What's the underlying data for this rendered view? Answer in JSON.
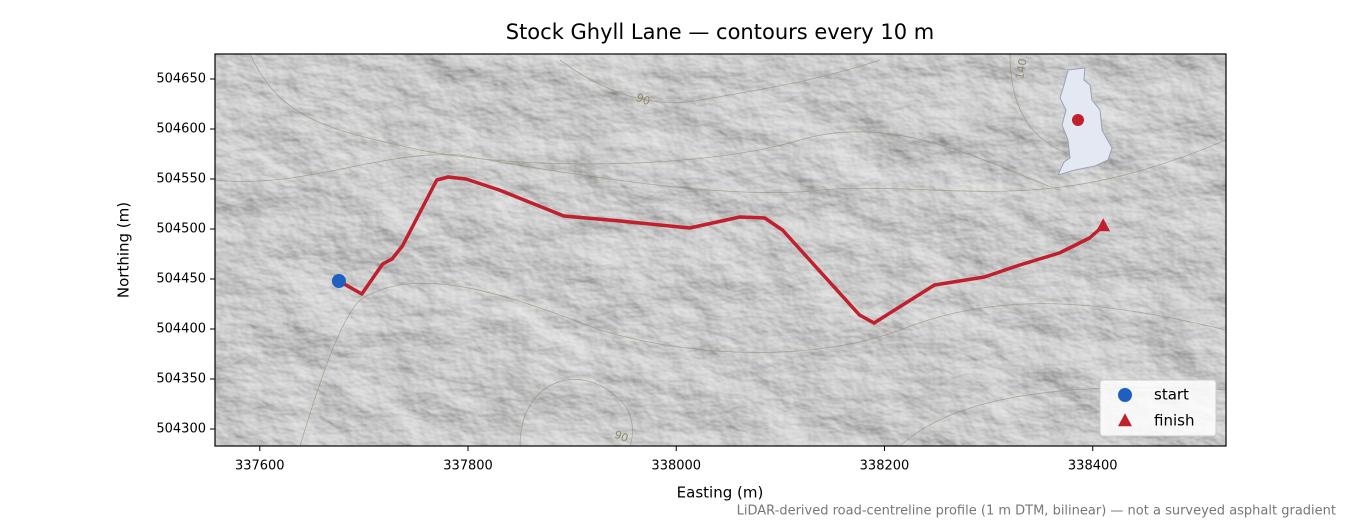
{
  "chart_data": {
    "type": "line",
    "title": "Stock Ghyll Lane — contours every 10 m",
    "x_label": "Easting (m)",
    "y_label": "Northing (m)",
    "footnote": "LiDAR-derived road-centreline profile (1 m DTM, bilinear) — not a surveyed asphalt gradient",
    "xlim": [
      337557,
      338528
    ],
    "ylim": [
      504283,
      504675
    ],
    "xticks": [
      337600,
      337800,
      338000,
      338200,
      338400
    ],
    "yticks": [
      504300,
      504350,
      504400,
      504450,
      504500,
      504550,
      504600,
      504650
    ],
    "route": {
      "color": "#c0202e",
      "x": [
        337676,
        337698,
        337718,
        337727,
        337737,
        337770,
        337781,
        337798,
        337830,
        337892,
        337946,
        338013,
        338061,
        338085,
        338102,
        338176,
        338190,
        338248,
        338296,
        338330,
        338368,
        338397,
        338410
      ],
      "y": [
        504448,
        504435,
        504465,
        504470,
        504483,
        504549,
        504552,
        504550,
        504539,
        504513,
        504508,
        504501,
        504512,
        504511,
        504499,
        504414,
        504406,
        504444,
        504452,
        504464,
        504476,
        504491,
        504503
      ]
    },
    "markers": [
      {
        "name": "start",
        "color": "#1f5fbf",
        "shape": "circle",
        "x": 337676,
        "y": 504448
      },
      {
        "name": "finish",
        "color": "#c0202e",
        "shape": "triangle",
        "x": 338410,
        "y": 504503
      }
    ],
    "contour_labels": [
      {
        "text": "90",
        "x": 337968,
        "y": 504629
      },
      {
        "text": "90",
        "x": 337947,
        "y": 504292
      },
      {
        "text": "140",
        "x": 338332,
        "y": 504660
      }
    ],
    "legend": "lower right"
  }
}
